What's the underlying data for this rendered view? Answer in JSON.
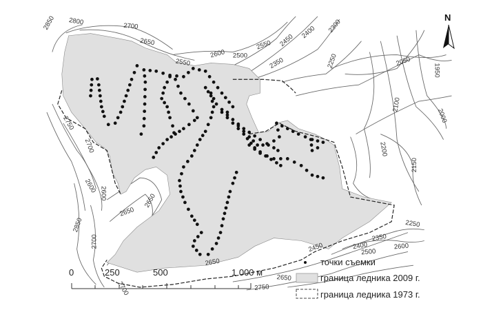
{
  "map": {
    "north_arrow_label": "N",
    "contour_labels": [
      "2850",
      "2800",
      "2700",
      "2650",
      "2550",
      "2600",
      "2550",
      "2500",
      "2450",
      "2400",
      "2300",
      "2350",
      "2250",
      "2050",
      "1950",
      "2100",
      "2000",
      "2200",
      "2150",
      "2750",
      "2700",
      "2600",
      "2600",
      "2650",
      "2650",
      "2850",
      "2700",
      "2250",
      "2350",
      "2400",
      "2450",
      "2500",
      "2600",
      "2650",
      "2650",
      "2700",
      "2750"
    ],
    "colors": {
      "glacier_2009": "#e0e0e0",
      "points": "#111111",
      "contours": "#555555"
    }
  },
  "scale_bar": {
    "ticks": [
      "0",
      "250",
      "500",
      "1 000 м"
    ]
  },
  "legend": {
    "items": [
      {
        "label": "точки съемки",
        "symbol": "dot"
      },
      {
        "label": "граница ледника 2009 г.",
        "symbol": "gray-fill"
      },
      {
        "label": "граница ледника 1973 г.",
        "symbol": "dashed-box"
      }
    ]
  }
}
